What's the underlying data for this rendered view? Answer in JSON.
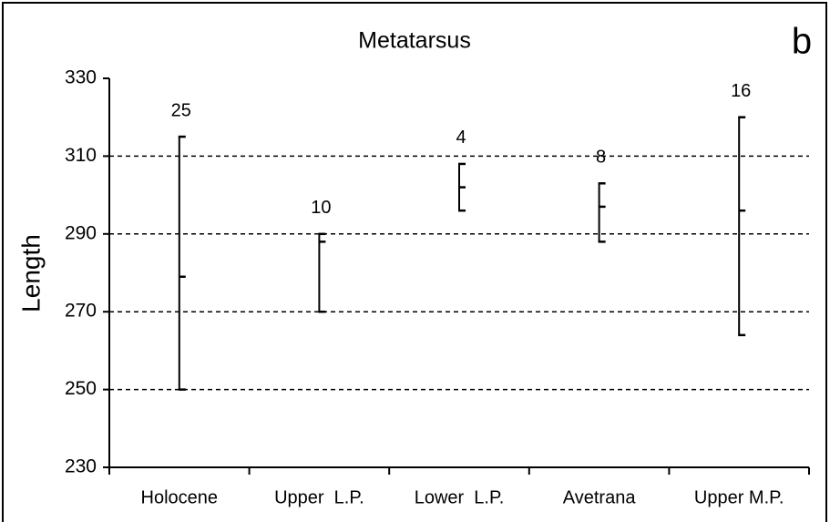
{
  "chart_data": {
    "type": "range",
    "title": "Metatarsus",
    "panel_label": "b",
    "y_label": "Length",
    "categories": [
      "Holocene",
      "Upper  L.P.",
      "Lower  L.P.",
      "Avetrana",
      "Upper M.P."
    ],
    "min": [
      250,
      270,
      296,
      288,
      264
    ],
    "mean": [
      279,
      288,
      302,
      297,
      296
    ],
    "max": [
      315,
      290,
      308,
      303,
      320
    ],
    "n": [
      25,
      10,
      4,
      8,
      16
    ],
    "color": "#000000",
    "ylim": [
      230,
      330
    ],
    "yticks": [
      230,
      250,
      270,
      290,
      310,
      330
    ],
    "grid": true
  }
}
